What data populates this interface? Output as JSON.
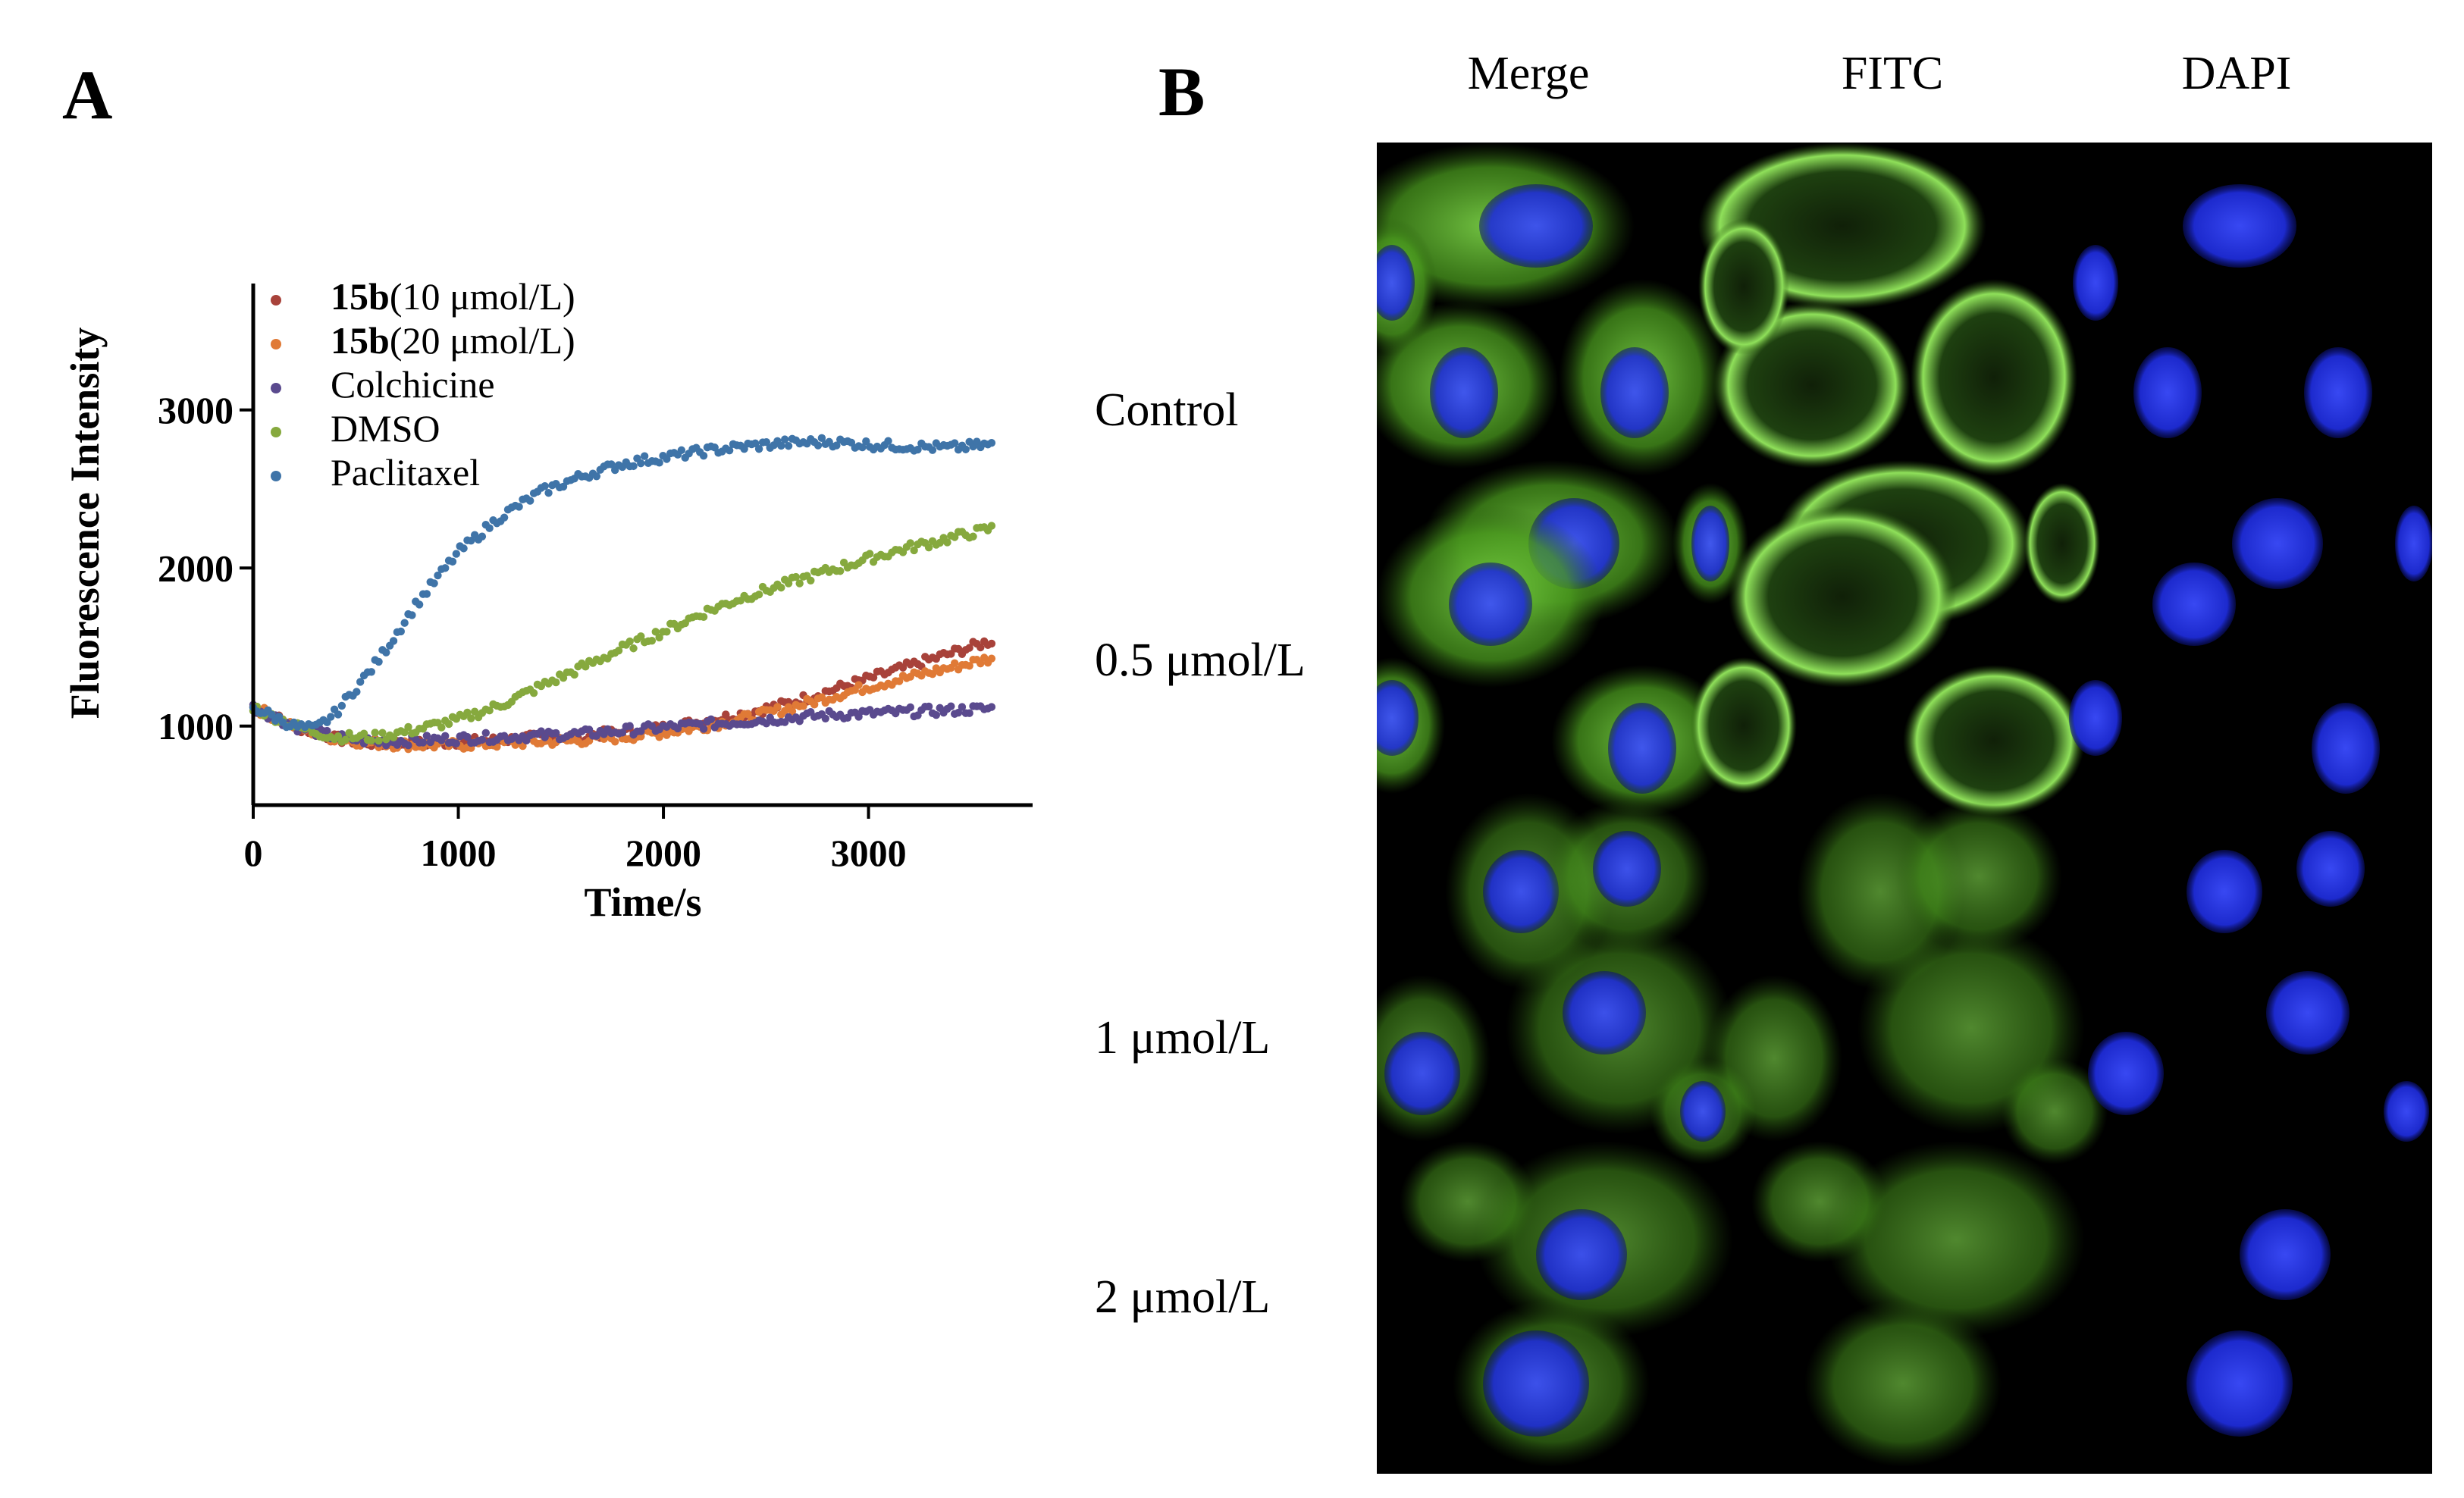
{
  "panel_a": {
    "letter": "A"
  },
  "panel_b": {
    "letter": "B",
    "columns": [
      "Merge",
      "FITC",
      "DAPI"
    ],
    "rows": [
      "Control",
      "0.5 μmol/L",
      "1 μmol/L",
      "2 μmol/L"
    ],
    "colors": {
      "tubulin": "#5fbf2a",
      "nucleus": "#1e2cd8",
      "background": "#000000"
    }
  },
  "chart_data": {
    "type": "scatter",
    "xlabel": "Time/s",
    "ylabel": "Fluorescence Intensity",
    "xlim": [
      0,
      3800
    ],
    "ylim": [
      500,
      3800
    ],
    "xticks": [
      0,
      1000,
      2000,
      3000
    ],
    "yticks": [
      1000,
      2000,
      3000
    ],
    "legend_position": "top-left",
    "grid": false,
    "series": [
      {
        "name": "15b(10 μmol/L)",
        "name_bold": "15b",
        "name_rest": "(10 μmol/L)",
        "color": "#a8423a",
        "x": [
          0,
          200,
          400,
          600,
          800,
          1000,
          1200,
          1400,
          1600,
          1800,
          2000,
          2200,
          2400,
          2600,
          2800,
          3000,
          3200,
          3400,
          3600
        ],
        "y": [
          1120,
          1000,
          920,
          890,
          890,
          900,
          910,
          930,
          940,
          960,
          990,
          1030,
          1080,
          1140,
          1220,
          1300,
          1380,
          1460,
          1540
        ]
      },
      {
        "name": "15b(20 μmol/L)",
        "name_bold": "15b",
        "name_rest": "(20 μmol/L)",
        "color": "#e07a36",
        "x": [
          0,
          200,
          400,
          600,
          800,
          1000,
          1200,
          1400,
          1600,
          1800,
          2000,
          2200,
          2400,
          2600,
          2800,
          3000,
          3200,
          3400,
          3600
        ],
        "y": [
          1120,
          1000,
          920,
          890,
          880,
          880,
          890,
          900,
          910,
          930,
          960,
          1000,
          1050,
          1110,
          1180,
          1250,
          1310,
          1370,
          1430
        ]
      },
      {
        "name": "Colchicine",
        "color": "#5a4a8e",
        "x": [
          0,
          200,
          400,
          600,
          800,
          1000,
          1200,
          1400,
          1600,
          1800,
          2000,
          2200,
          2400,
          2600,
          2800,
          3000,
          3200,
          3400,
          3600
        ],
        "y": [
          1120,
          1000,
          930,
          900,
          910,
          920,
          930,
          940,
          950,
          970,
          990,
          1010,
          1030,
          1050,
          1070,
          1080,
          1090,
          1100,
          1110
        ]
      },
      {
        "name": "DMSO",
        "color": "#86a93e",
        "x": [
          0,
          200,
          400,
          600,
          800,
          1000,
          1200,
          1400,
          1600,
          1800,
          2000,
          2200,
          2400,
          2600,
          2800,
          3000,
          3200,
          3400,
          3600
        ],
        "y": [
          1120,
          1000,
          930,
          930,
          980,
          1040,
          1130,
          1250,
          1370,
          1490,
          1600,
          1720,
          1820,
          1900,
          1980,
          2060,
          2130,
          2190,
          2250
        ]
      },
      {
        "name": "Paclitaxel",
        "color": "#3f74a8",
        "x": [
          0,
          200,
          300,
          400,
          600,
          800,
          1000,
          1200,
          1400,
          1600,
          1800,
          2000,
          2200,
          2400,
          2600,
          2800,
          3000,
          3200,
          3400,
          3600
        ],
        "y": [
          1120,
          1000,
          980,
          1080,
          1400,
          1780,
          2100,
          2320,
          2480,
          2580,
          2660,
          2700,
          2740,
          2770,
          2790,
          2800,
          2780,
          2770,
          2760,
          2780
        ]
      }
    ]
  }
}
